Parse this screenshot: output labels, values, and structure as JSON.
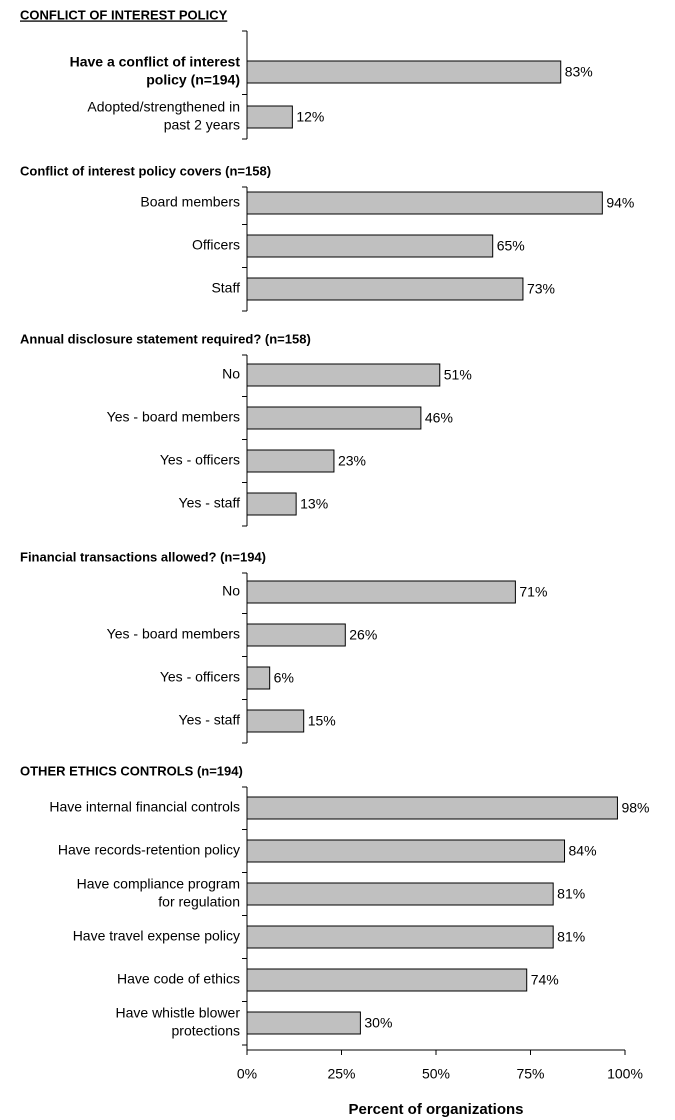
{
  "chart_data": {
    "type": "bar",
    "orientation": "horizontal",
    "color": "#c0c0c0",
    "x_label": "Percent of organizations",
    "xlim": [
      0,
      100
    ],
    "xticks": [
      {
        "value": 0,
        "label": "0%"
      },
      {
        "value": 25,
        "label": "25%"
      },
      {
        "value": 50,
        "label": "50%"
      },
      {
        "value": 75,
        "label": "75%"
      },
      {
        "value": 100,
        "label": "100%"
      }
    ],
    "groups": [
      {
        "title": "CONFLICT OF INTEREST POLICY",
        "underline": true,
        "bold_categories": [
          0
        ],
        "categories": [
          [
            "Have a conflict of interest",
            "policy (n=194)"
          ],
          [
            "Adopted/strengthened in",
            "past 2 years"
          ]
        ],
        "values": [
          83,
          12
        ],
        "value_labels": [
          "83%",
          "12%"
        ]
      },
      {
        "title": "Conflict of interest policy covers (n=158)",
        "categories": [
          [
            "Board members"
          ],
          [
            "Officers"
          ],
          [
            "Staff"
          ]
        ],
        "values": [
          94,
          65,
          73
        ],
        "value_labels": [
          "94%",
          "65%",
          "73%"
        ]
      },
      {
        "title": "Annual disclosure statement required? (n=158)",
        "categories": [
          [
            "No"
          ],
          [
            "Yes - board members"
          ],
          [
            "Yes - officers"
          ],
          [
            "Yes - staff"
          ]
        ],
        "values": [
          51,
          46,
          23,
          13
        ],
        "value_labels": [
          "51%",
          "46%",
          "23%",
          "13%"
        ]
      },
      {
        "title": "Financial transactions allowed? (n=194)",
        "categories": [
          [
            "No"
          ],
          [
            "Yes - board members"
          ],
          [
            "Yes - officers"
          ],
          [
            "Yes - staff"
          ]
        ],
        "values": [
          71,
          26,
          6,
          15
        ],
        "value_labels": [
          "71%",
          "26%",
          "6%",
          "15%"
        ]
      },
      {
        "title": "OTHER ETHICS CONTROLS (n=194)",
        "categories": [
          [
            "Have internal financial controls"
          ],
          [
            "Have records-retention policy"
          ],
          [
            "Have compliance program",
            "for regulation"
          ],
          [
            "Have travel expense policy"
          ],
          [
            "Have code of ethics"
          ],
          [
            "Have whistle blower",
            "protections"
          ]
        ],
        "values": [
          98,
          84,
          81,
          81,
          74,
          30
        ],
        "value_labels": [
          "98%",
          "84%",
          "81%",
          "81%",
          "74%",
          "30%"
        ]
      }
    ]
  }
}
